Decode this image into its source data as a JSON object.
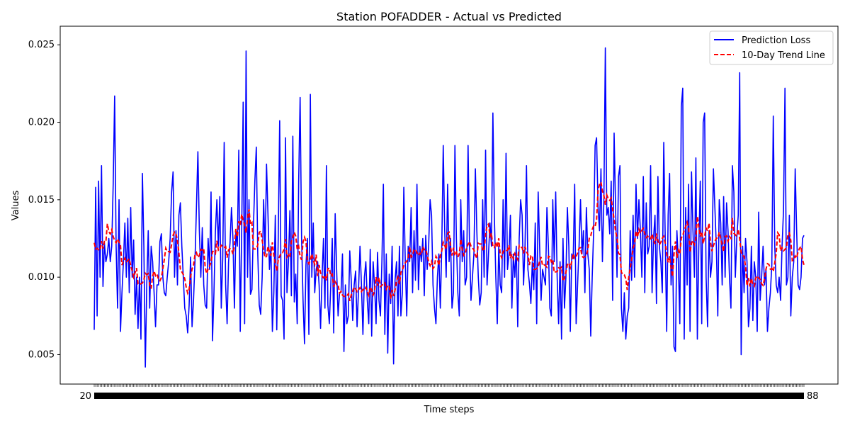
{
  "chart_data": {
    "type": "line",
    "title": "Station POFADDER - Actual vs Predicted",
    "xlabel": "Time steps",
    "ylabel": "Values",
    "xlim": [
      -2,
      232
    ],
    "ylim": [
      0.0031,
      0.0262
    ],
    "yticks": [
      0.005,
      0.01,
      0.015,
      0.02,
      0.025
    ],
    "ytick_labels": [
      "0.005",
      "0.010",
      "0.015",
      "0.020",
      "0.025"
    ],
    "xtick_edge_labels": {
      "first": "20",
      "last": "88"
    },
    "n_points": 231,
    "grid": false,
    "legend_position": "top-right",
    "series": [
      {
        "name": "Prediction Loss",
        "color": "#0000ff",
        "style": "solid",
        "values": [
          0.0066,
          0.0158,
          0.0075,
          0.0162,
          0.01,
          0.0172,
          0.0094,
          0.0122,
          0.011,
          0.0115,
          0.0125,
          0.011,
          0.012,
          0.016,
          0.0217,
          0.012,
          0.008,
          0.015,
          0.0065,
          0.009,
          0.011,
          0.0135,
          0.01,
          0.0138,
          0.009,
          0.0145,
          0.01,
          0.0124,
          0.0076,
          0.01,
          0.0067,
          0.01,
          0.006,
          0.0167,
          0.012,
          0.0042,
          0.0096,
          0.013,
          0.008,
          0.012,
          0.011,
          0.009,
          0.0068,
          0.0095,
          0.0095,
          0.0123,
          0.0128,
          0.01,
          0.009,
          0.0088,
          0.01,
          0.011,
          0.0125,
          0.0155,
          0.0168,
          0.01,
          0.013,
          0.0095,
          0.014,
          0.0148,
          0.012,
          0.01,
          0.008,
          0.0075,
          0.0064,
          0.0082,
          0.0113,
          0.0068,
          0.0085,
          0.011,
          0.0145,
          0.0181,
          0.013,
          0.01,
          0.0132,
          0.0095,
          0.0082,
          0.008,
          0.0125,
          0.0105,
          0.0155,
          0.0059,
          0.009,
          0.013,
          0.015,
          0.012,
          0.0152,
          0.008,
          0.0112,
          0.0187,
          0.0095,
          0.007,
          0.011,
          0.0122,
          0.0145,
          0.0125,
          0.008,
          0.013,
          0.012,
          0.0182,
          0.0065,
          0.013,
          0.0213,
          0.007,
          0.0246,
          0.01,
          0.015,
          0.0089,
          0.0092,
          0.0132,
          0.0162,
          0.0184,
          0.0115,
          0.0082,
          0.0076,
          0.01,
          0.015,
          0.0115,
          0.0173,
          0.014,
          0.0105,
          0.012,
          0.0065,
          0.009,
          0.014,
          0.0066,
          0.0125,
          0.0201,
          0.0088,
          0.0085,
          0.006,
          0.019,
          0.009,
          0.011,
          0.0143,
          0.0088,
          0.0191,
          0.0084,
          0.0102,
          0.007,
          0.0161,
          0.0216,
          0.0125,
          0.0085,
          0.0057,
          0.0108,
          0.0125,
          0.0063,
          0.0218,
          0.01,
          0.0135,
          0.009,
          0.0105,
          0.011,
          0.0095,
          0.0067,
          0.01,
          0.0125,
          0.008,
          0.0172,
          0.0082,
          0.007,
          0.0095,
          0.0125,
          0.0064,
          0.0141,
          0.0105,
          0.0075,
          0.009,
          0.009,
          0.0115,
          0.0052,
          0.0095,
          0.007,
          0.0075,
          0.0117,
          0.0098,
          0.0072,
          0.0095,
          0.0104,
          0.0068,
          0.0092,
          0.012,
          0.0095,
          0.0063,
          0.01,
          0.011,
          0.0085,
          0.007,
          0.0118,
          0.0062,
          0.011,
          0.0094,
          0.007,
          0.0116,
          0.0085,
          0.0075,
          0.011,
          0.016,
          0.0063,
          0.0115,
          0.0051,
          0.0102,
          0.0083,
          0.012,
          0.0044,
          0.0098,
          0.011,
          0.0075,
          0.012,
          0.0075,
          0.009,
          0.0158,
          0.011,
          0.0075,
          0.012,
          0.011,
          0.0145,
          0.009,
          0.013,
          0.0098,
          0.016,
          0.0092,
          0.012,
          0.011,
          0.0125,
          0.0088,
          0.0127
        ],
        "note": "first 231 points; values beyond index 230 continue below"
      },
      {
        "name": "10-Day Trend Line",
        "color": "#ff0000",
        "style": "dashed",
        "values": []
      }
    ],
    "tail_values": [
      0.0105,
      0.012,
      0.015,
      0.014,
      0.0095,
      0.008,
      0.007,
      0.01,
      0.0115,
      0.008,
      0.012,
      0.0185,
      0.013,
      0.01,
      0.016,
      0.011,
      0.0125,
      0.008,
      0.009,
      0.0185,
      0.0125,
      0.009,
      0.0075,
      0.015,
      0.011,
      0.013,
      0.0095,
      0.01,
      0.0185,
      0.012,
      0.0085,
      0.01,
      0.0115,
      0.017,
      0.013,
      0.01,
      0.0082,
      0.009,
      0.015,
      0.01,
      0.0182,
      0.0095,
      0.0115,
      0.0135,
      0.012,
      0.0206,
      0.014,
      0.01,
      0.007,
      0.012,
      0.0095,
      0.009,
      0.015,
      0.01,
      0.018,
      0.0105,
      0.0115,
      0.014,
      0.008,
      0.0115,
      0.01,
      0.012,
      0.0068,
      0.0125,
      0.015,
      0.014,
      0.0095,
      0.012,
      0.0172,
      0.0105,
      0.0096,
      0.0083,
      0.011,
      0.0092,
      0.0135,
      0.007,
      0.0155,
      0.012,
      0.0085,
      0.0105,
      0.01,
      0.0095,
      0.0145,
      0.012,
      0.008,
      0.0075,
      0.015,
      0.011,
      0.0155,
      0.01,
      0.007,
      0.011,
      0.006,
      0.0125,
      0.008,
      0.01,
      0.0145,
      0.012,
      0.0065,
      0.0115,
      0.0112,
      0.016,
      0.007,
      0.0095,
      0.012,
      0.015,
      0.0115,
      0.013,
      0.009,
      0.0145,
      0.0115,
      0.0105,
      0.0062,
      0.01,
      0.013,
      0.0185,
      0.019,
      0.0145,
      0.013,
      0.017,
      0.011,
      0.015,
      0.0248,
      0.014,
      0.0145,
      0.0128,
      0.0162,
      0.0085,
      0.0193,
      0.0145,
      0.01,
      0.0165,
      0.0172,
      0.008,
      0.0065,
      0.009,
      0.006,
      0.0075,
      0.008,
      0.013,
      0.0098,
      0.014,
      0.01,
      0.016,
      0.0125,
      0.015,
      0.013,
      0.01,
      0.0165,
      0.009,
      0.0148,
      0.0115,
      0.012,
      0.0172,
      0.009,
      0.0125,
      0.014,
      0.0083,
      0.0165,
      0.012,
      0.011,
      0.009,
      0.0187,
      0.0125,
      0.0065,
      0.014,
      0.0167,
      0.0095,
      0.012,
      0.0055,
      0.0052,
      0.013,
      0.011,
      0.007,
      0.021,
      0.0222,
      0.006,
      0.0145,
      0.0095,
      0.016,
      0.0065,
      0.0168,
      0.013,
      0.01,
      0.0177,
      0.006,
      0.012,
      0.0162,
      0.007,
      0.02,
      0.0206,
      0.01,
      0.0068,
      0.013,
      0.01,
      0.011,
      0.017,
      0.0145,
      0.012,
      0.0075,
      0.015,
      0.0135,
      0.0095,
      0.0152,
      0.01,
      0.0148,
      0.013,
      0.01,
      0.008,
      0.0172,
      0.0155,
      0.01,
      0.0125,
      0.014,
      0.0232,
      0.005,
      0.012,
      0.009,
      0.0125,
      0.011,
      0.0068,
      0.008,
      0.012,
      0.0072,
      0.011,
      0.01,
      0.0065,
      0.0142,
      0.0085,
      0.01,
      0.012,
      0.0095,
      0.0105,
      0.0065,
      0.008,
      0.009,
      0.0108,
      0.0204,
      0.012,
      0.0095,
      0.009,
      0.01,
      0.0085,
      0.012,
      0.0143,
      0.0222,
      0.0095,
      0.01,
      0.014,
      0.0075,
      0.01,
      0.011,
      0.017,
      0.013,
      0.0095,
      0.0092,
      0.01,
      0.0125,
      0.0127
    ]
  },
  "legend": {
    "items": [
      {
        "label": "Prediction Loss",
        "color": "#0000ff",
        "style": "solid"
      },
      {
        "label": "10-Day Trend Line",
        "color": "#ff0000",
        "style": "dashed"
      }
    ]
  }
}
